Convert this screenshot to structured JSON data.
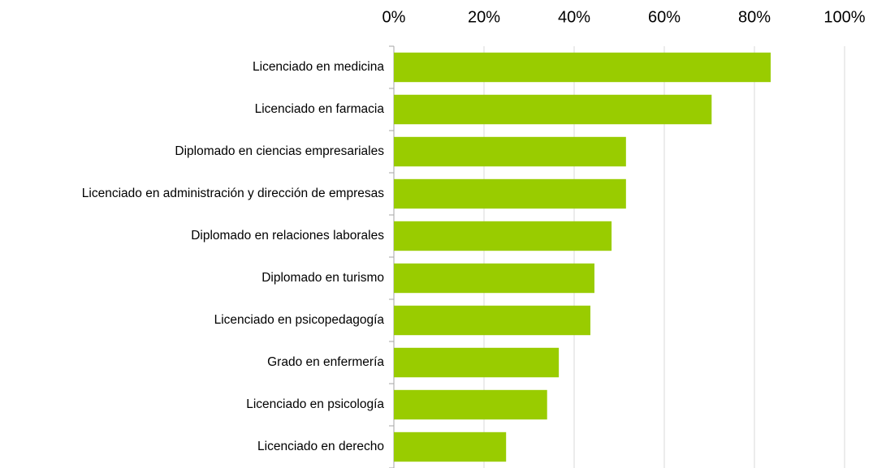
{
  "chart_data": {
    "type": "bar",
    "orientation": "horizontal",
    "categories": [
      "Licenciado en medicina",
      "Licenciado en farmacia",
      "Diplomado en ciencias empresariales",
      "Licenciado en administración y dirección de empresas",
      "Diplomado en relaciones laborales",
      "Diplomado en turismo",
      "Licenciado en psicopedagogía",
      "Grado en enfermería",
      "Licenciado en psicología",
      "Licenciado en derecho"
    ],
    "values": [
      83.6,
      70.5,
      51.5,
      51.5,
      48.3,
      44.5,
      43.6,
      36.6,
      34,
      24.9
    ],
    "color": "#99cc00",
    "xlim": [
      0,
      100
    ],
    "xticks": [
      {
        "value": 0,
        "label": "0%"
      },
      {
        "value": 20,
        "label": "20%"
      },
      {
        "value": 40,
        "label": "40%"
      },
      {
        "value": 60,
        "label": "60%"
      },
      {
        "value": 80,
        "label": "80%"
      },
      {
        "value": 100,
        "label": "100%"
      }
    ],
    "grid": true
  }
}
